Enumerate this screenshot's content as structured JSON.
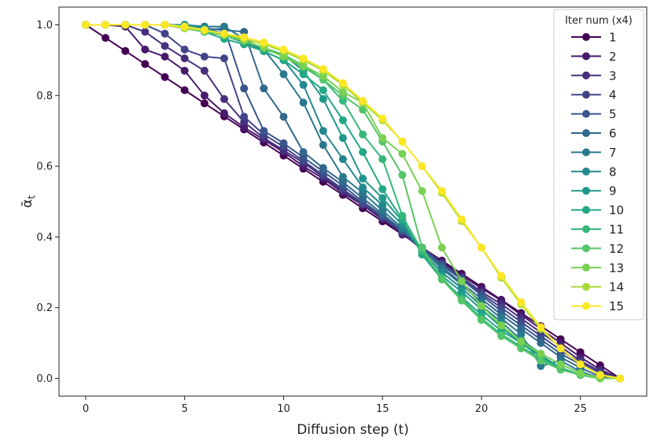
{
  "chart_data": {
    "type": "line",
    "title": "",
    "xlabel": "Diffusion step (t)",
    "ylabel": "ᾱ",
    "ylabel_sub": "t",
    "xlim": [
      -1.35,
      28.35
    ],
    "ylim": [
      -0.05,
      1.05
    ],
    "xticks": [
      0,
      5,
      10,
      15,
      20,
      25
    ],
    "xtick_labels": [
      "0",
      "5",
      "10",
      "15",
      "20",
      "25"
    ],
    "yticks": [
      0.0,
      0.2,
      0.4,
      0.6,
      0.8,
      1.0
    ],
    "ytick_labels": [
      "0.0",
      "0.2",
      "0.4",
      "0.6",
      "0.8",
      "1.0"
    ],
    "x": [
      0,
      1,
      2,
      3,
      4,
      5,
      6,
      7,
      8,
      9,
      10,
      11,
      12,
      13,
      14,
      15,
      16,
      17,
      18,
      19,
      20,
      21,
      22,
      23,
      24,
      25,
      26,
      27
    ],
    "legend": {
      "title": "Iter num (x4)",
      "position": "top-right"
    },
    "series": [
      {
        "name": "1",
        "color": "#440154",
        "values": [
          1.0,
          0.963,
          0.926,
          0.889,
          0.852,
          0.815,
          0.778,
          0.741,
          0.704,
          0.667,
          0.63,
          0.593,
          0.556,
          0.519,
          0.481,
          0.444,
          0.407,
          0.37,
          0.333,
          0.296,
          0.259,
          0.222,
          0.185,
          0.148,
          0.111,
          0.074,
          0.037,
          0.0
        ]
      },
      {
        "name": "2",
        "color": "#481a6c",
        "values": [
          1.0,
          1.0,
          0.995,
          0.93,
          0.91,
          0.87,
          0.8,
          0.75,
          0.71,
          0.675,
          0.64,
          0.6,
          0.565,
          0.525,
          0.49,
          0.45,
          0.41,
          0.37,
          0.33,
          0.29,
          0.255,
          0.22,
          0.18,
          0.14,
          0.1,
          0.06,
          0.025,
          0.0
        ]
      },
      {
        "name": "3",
        "color": "#472f7d",
        "values": [
          1.0,
          1.0,
          1.0,
          0.98,
          0.94,
          0.905,
          0.87,
          0.79,
          0.725,
          0.68,
          0.645,
          0.61,
          0.57,
          0.53,
          0.49,
          0.455,
          0.41,
          0.365,
          0.325,
          0.285,
          0.245,
          0.21,
          0.17,
          0.13,
          0.09,
          0.05,
          0.02,
          0.0
        ]
      },
      {
        "name": "4",
        "color": "#414487",
        "values": [
          1.0,
          1.0,
          1.0,
          1.0,
          0.975,
          0.93,
          0.91,
          0.905,
          0.74,
          0.69,
          0.655,
          0.615,
          0.575,
          0.535,
          0.495,
          0.455,
          0.415,
          0.37,
          0.325,
          0.285,
          0.24,
          0.2,
          0.16,
          0.12,
          0.08,
          0.045,
          0.015,
          0.0
        ]
      },
      {
        "name": "5",
        "color": "#39568c",
        "values": [
          1.0,
          1.0,
          1.0,
          1.0,
          1.0,
          0.99,
          0.985,
          0.99,
          0.82,
          0.7,
          0.665,
          0.625,
          0.585,
          0.545,
          0.5,
          0.46,
          0.42,
          0.37,
          0.32,
          0.28,
          0.235,
          0.19,
          0.15,
          0.11,
          0.07,
          0.04,
          0.01,
          0.0
        ]
      },
      {
        "name": "6",
        "color": "#31688e",
        "values": [
          1.0,
          1.0,
          1.0,
          1.0,
          1.0,
          1.0,
          0.99,
          0.985,
          0.98,
          0.82,
          0.74,
          0.64,
          0.595,
          0.555,
          0.51,
          0.465,
          0.42,
          0.365,
          0.315,
          0.27,
          0.225,
          0.18,
          0.14,
          0.1,
          0.06,
          0.03,
          0.005,
          0.0
        ]
      },
      {
        "name": "7",
        "color": "#2a788e",
        "values": [
          1.0,
          1.0,
          1.0,
          1.0,
          1.0,
          1.0,
          0.995,
          0.995,
          0.96,
          0.93,
          0.86,
          0.78,
          0.66,
          0.57,
          0.525,
          0.475,
          0.425,
          0.365,
          0.31,
          0.265,
          0.215,
          0.17,
          0.125,
          0.035,
          0.05,
          0.02,
          0.0,
          0.0
        ]
      },
      {
        "name": "8",
        "color": "#23888e",
        "values": [
          1.0,
          1.0,
          1.0,
          1.0,
          1.0,
          1.0,
          0.99,
          0.975,
          0.955,
          0.925,
          0.9,
          0.83,
          0.7,
          0.62,
          0.54,
          0.49,
          0.435,
          0.36,
          0.3,
          0.255,
          0.205,
          0.16,
          0.11,
          0.07,
          0.04,
          0.015,
          0.0,
          0.0
        ]
      },
      {
        "name": "9",
        "color": "#1f988b",
        "values": [
          1.0,
          1.0,
          1.0,
          1.0,
          1.0,
          1.0,
          0.99,
          0.97,
          0.95,
          0.93,
          0.915,
          0.87,
          0.79,
          0.68,
          0.565,
          0.51,
          0.445,
          0.355,
          0.29,
          0.245,
          0.195,
          0.145,
          0.1,
          0.065,
          0.03,
          0.01,
          0.0,
          0.0
        ]
      },
      {
        "name": "10",
        "color": "#22a884",
        "values": [
          1.0,
          1.0,
          1.0,
          1.0,
          1.0,
          0.99,
          0.98,
          0.96,
          0.945,
          0.925,
          0.9,
          0.86,
          0.815,
          0.73,
          0.64,
          0.535,
          0.45,
          0.35,
          0.28,
          0.23,
          0.18,
          0.135,
          0.1,
          0.06,
          0.03,
          0.01,
          0.0,
          0.0
        ]
      },
      {
        "name": "11",
        "color": "#35b779",
        "values": [
          1.0,
          1.0,
          1.0,
          1.0,
          1.0,
          0.995,
          0.985,
          0.97,
          0.955,
          0.935,
          0.915,
          0.885,
          0.845,
          0.785,
          0.69,
          0.62,
          0.46,
          0.36,
          0.285,
          0.225,
          0.17,
          0.125,
          0.09,
          0.055,
          0.025,
          0.01,
          0.0,
          0.0
        ]
      },
      {
        "name": "12",
        "color": "#54c568",
        "values": [
          1.0,
          1.0,
          1.0,
          1.0,
          1.0,
          0.99,
          0.98,
          0.97,
          0.955,
          0.935,
          0.91,
          0.88,
          0.845,
          0.8,
          0.76,
          0.67,
          0.575,
          0.37,
          0.28,
          0.22,
          0.165,
          0.12,
          0.085,
          0.05,
          0.025,
          0.01,
          0.0,
          0.0
        ]
      },
      {
        "name": "13",
        "color": "#7ad151",
        "values": [
          1.0,
          1.0,
          1.0,
          1.0,
          1.0,
          0.99,
          0.985,
          0.97,
          0.955,
          0.935,
          0.91,
          0.885,
          0.855,
          0.81,
          0.78,
          0.68,
          0.635,
          0.53,
          0.37,
          0.275,
          0.205,
          0.15,
          0.105,
          0.07,
          0.04,
          0.015,
          0.0,
          0.0
        ]
      },
      {
        "name": "14",
        "color": "#a5db36",
        "values": [
          1.0,
          1.0,
          1.0,
          1.0,
          1.0,
          0.99,
          0.985,
          0.975,
          0.96,
          0.945,
          0.925,
          0.9,
          0.87,
          0.83,
          0.78,
          0.73,
          0.67,
          0.6,
          0.525,
          0.445,
          0.37,
          0.285,
          0.21,
          0.14,
          0.085,
          0.04,
          0.01,
          0.0
        ]
      },
      {
        "name": "15",
        "color": "#fde725",
        "values": [
          1.0,
          1.0,
          1.0,
          1.0,
          1.0,
          0.995,
          0.985,
          0.975,
          0.965,
          0.95,
          0.93,
          0.905,
          0.875,
          0.835,
          0.785,
          0.735,
          0.67,
          0.6,
          0.53,
          0.45,
          0.37,
          0.29,
          0.215,
          0.145,
          0.085,
          0.04,
          0.01,
          0.0
        ]
      }
    ]
  }
}
